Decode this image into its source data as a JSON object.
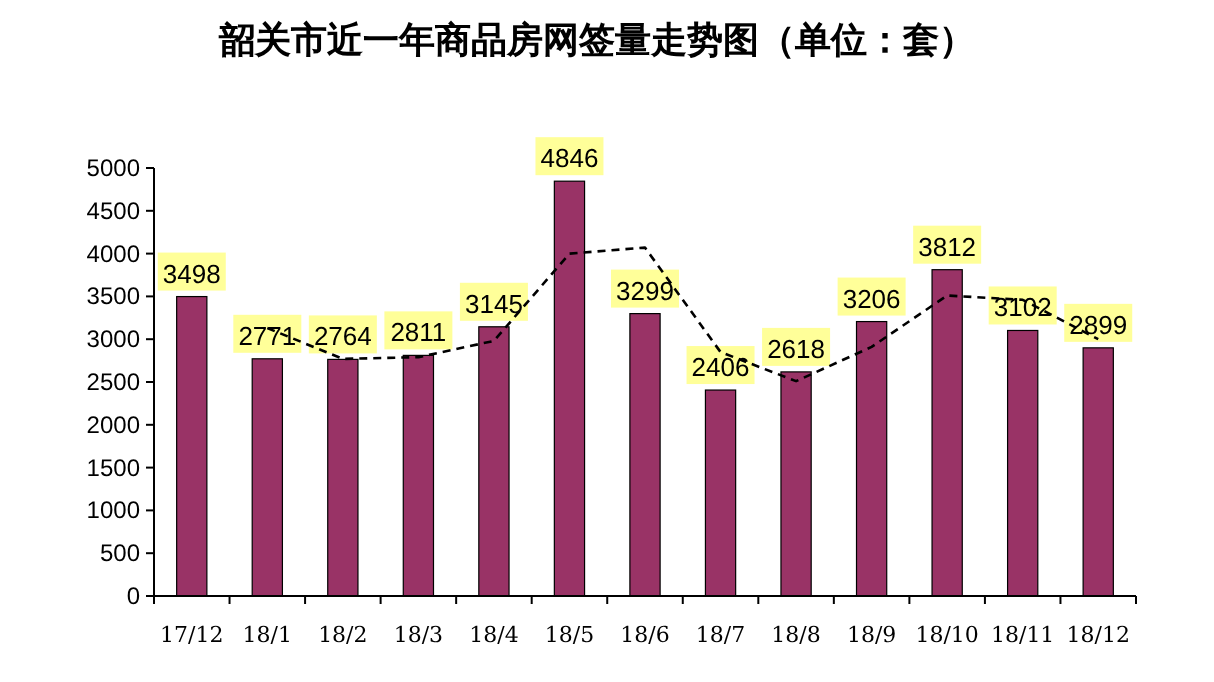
{
  "chart_data": {
    "type": "bar",
    "title": "韶关市近一年商品房网签量走势图（单位：套）",
    "categories": [
      "17/12",
      "18/1",
      "18/2",
      "18/3",
      "18/4",
      "18/5",
      "18/6",
      "18/7",
      "18/8",
      "18/9",
      "18/10",
      "18/11",
      "18/12"
    ],
    "series": [
      {
        "color": "#993366",
        "values": [
          3498,
          2771,
          2764,
          2811,
          3145,
          4846,
          3299,
          2406,
          2618,
          3206,
          3812,
          3102,
          2899
        ],
        "value_labels": [
          "3498",
          "2771",
          "2764",
          "2811",
          "3145",
          "4846",
          "3299",
          "2406",
          "2618",
          "3206",
          "3812",
          "3102",
          "2899"
        ]
      },
      {
        "type": "line",
        "color": "#000000",
        "line_style": "dashed",
        "marker": "none",
        "values": [
          null,
          3130,
          2770,
          2790,
          2980,
          4000,
          4070,
          2850,
          2510,
          2910,
          3510,
          3460,
          3000
        ]
      }
    ],
    "ylim": [
      0,
      5000
    ],
    "yticks": [
      0,
      500,
      1000,
      1500,
      2000,
      2500,
      3000,
      3500,
      4000,
      4500,
      5000
    ],
    "grid": false
  }
}
